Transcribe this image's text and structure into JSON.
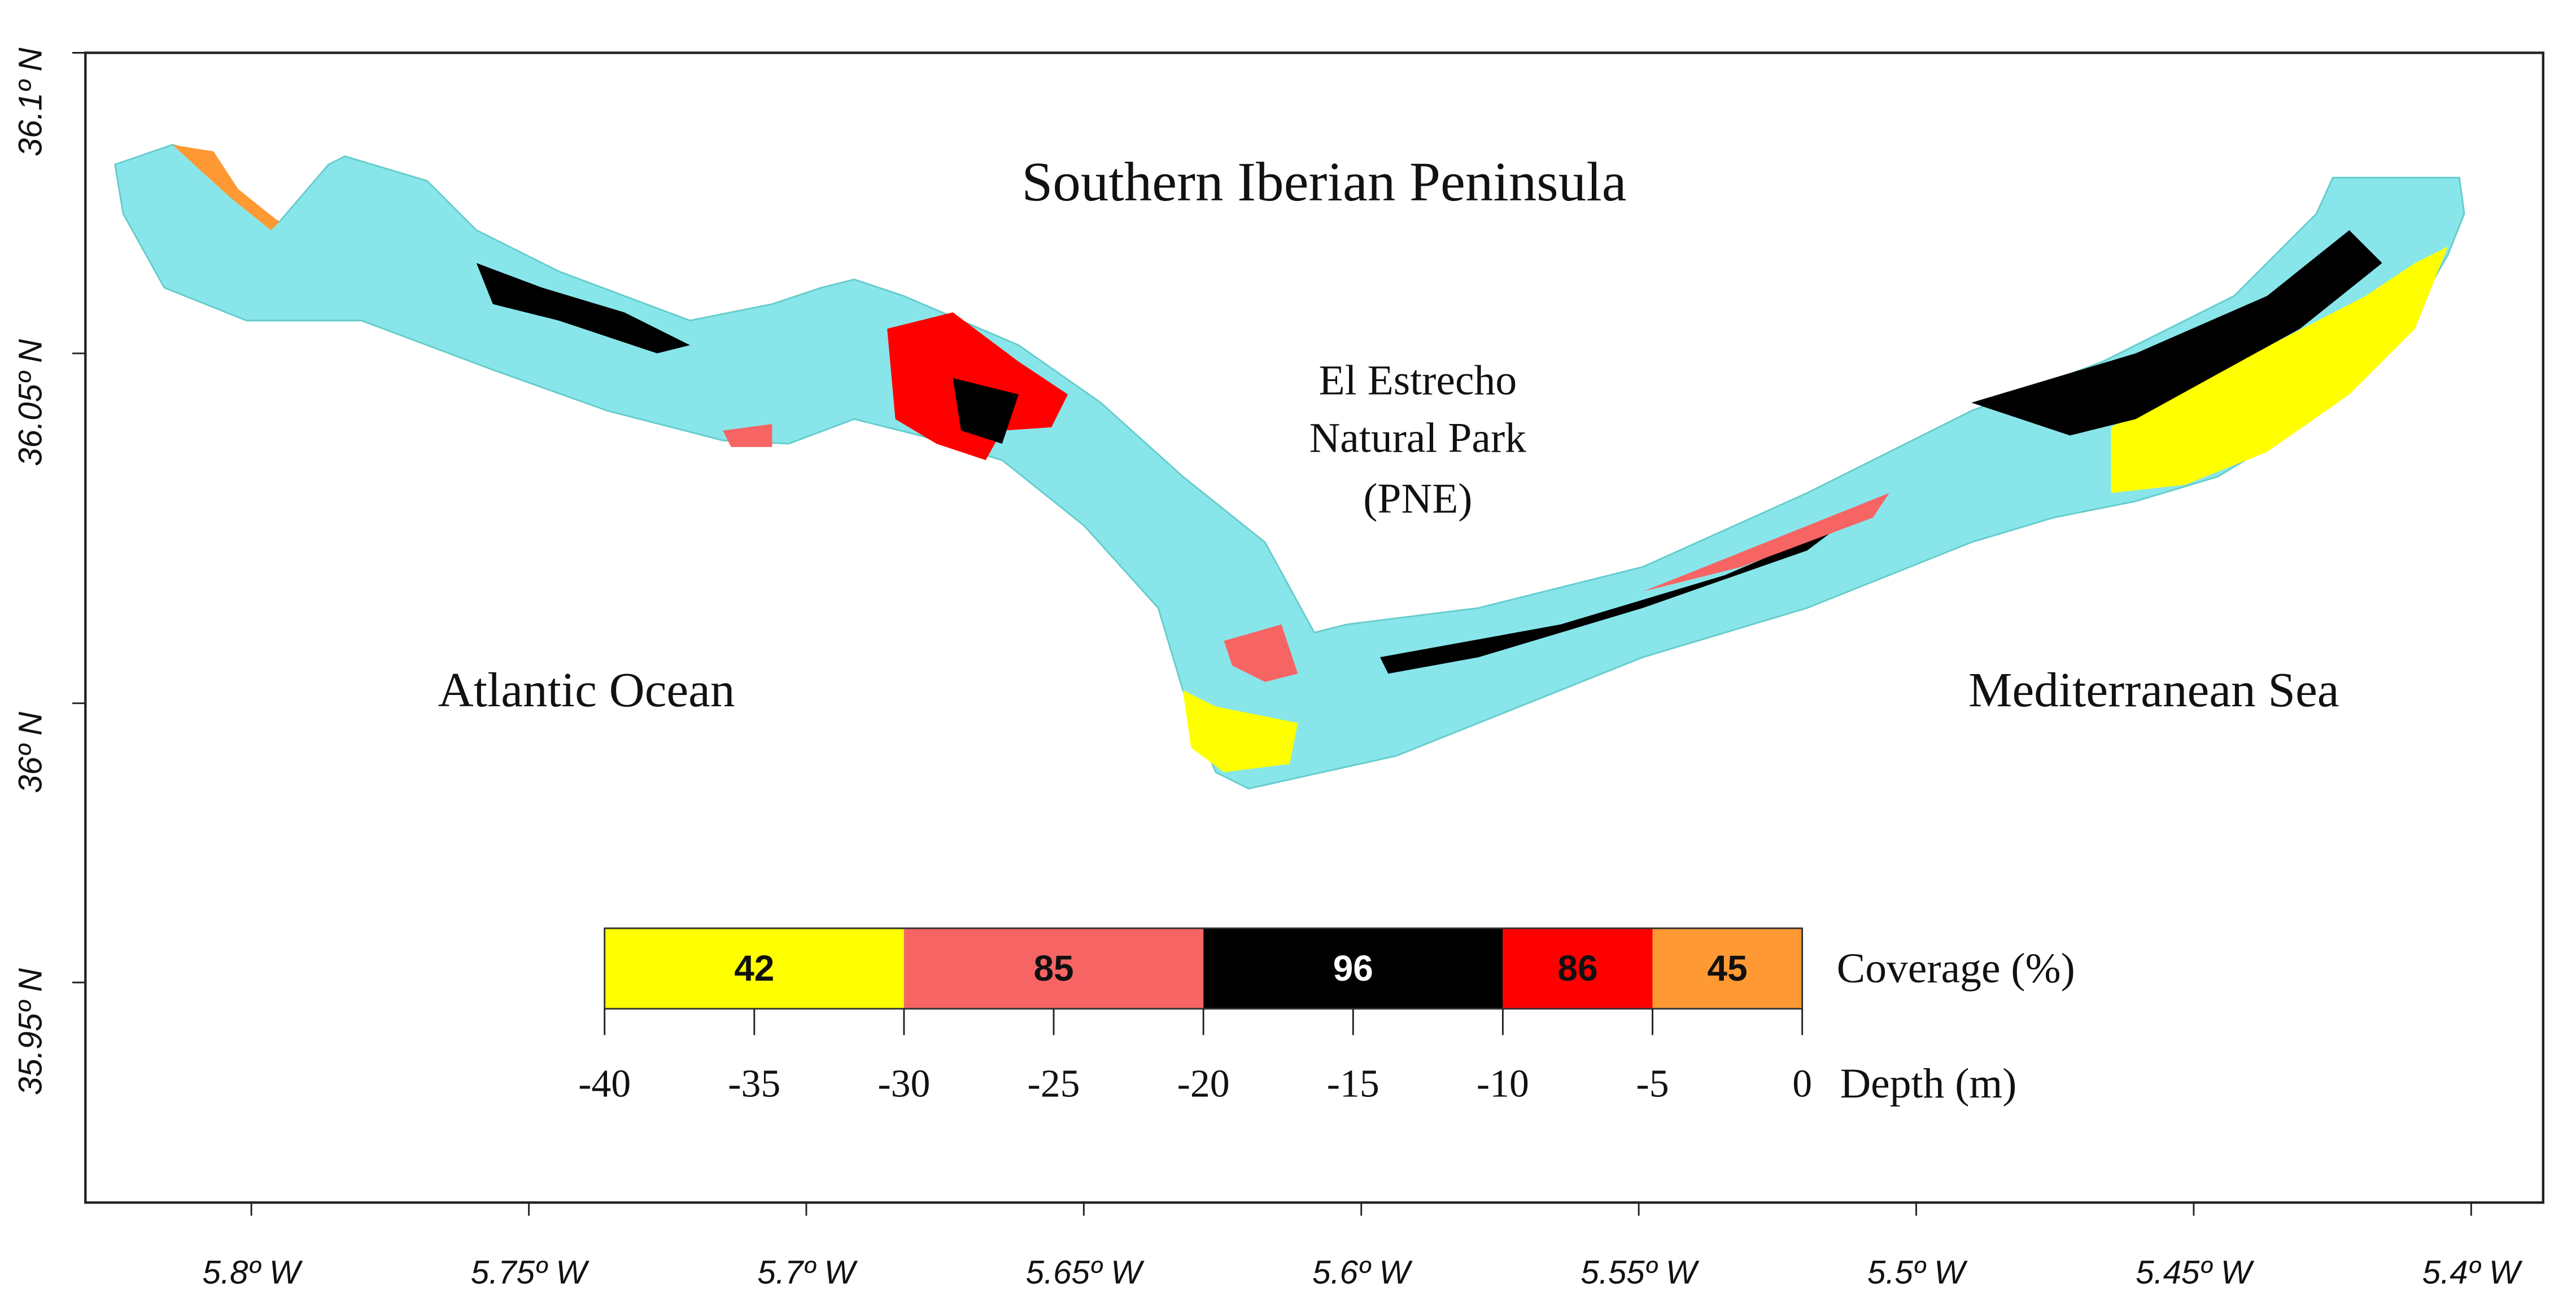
{
  "labels": {
    "region": "Southern Iberian Peninsula",
    "park_line1": "El Estrecho",
    "park_line2": "Natural Park",
    "park_line3": "(PNE)",
    "west_sea": "Atlantic Ocean",
    "east_sea": "Mediterranean Sea"
  },
  "axes": {
    "x_ticks": [
      "5.8º W",
      "5.75º W",
      "5.7º W",
      "5.65º W",
      "5.6º W",
      "5.55º W",
      "5.5º W",
      "5.45º W",
      "5.4º W"
    ],
    "y_ticks": [
      "36.1º N",
      "36.05º N",
      "36º N",
      "35.95º N"
    ]
  },
  "legend": {
    "coverage_label": "Coverage  (%)",
    "depth_label": "Depth  (m)",
    "depth_ticks": [
      -40,
      -35,
      -30,
      -25,
      -20,
      -15,
      -10,
      -5,
      0
    ],
    "segments": [
      {
        "coverage": 42,
        "color": "#ffff00",
        "depth_range": [
          -40,
          -30
        ]
      },
      {
        "coverage": 85,
        "color": "#f76464",
        "depth_range": [
          -30,
          -20
        ]
      },
      {
        "coverage": 96,
        "color": "#000000",
        "depth_range": [
          -20,
          -10
        ]
      },
      {
        "coverage": 86,
        "color": "#ff0000",
        "depth_range": [
          -10,
          -5
        ]
      },
      {
        "coverage": 45,
        "color": "#ff9933",
        "depth_range": [
          -5,
          0
        ]
      }
    ]
  }
}
